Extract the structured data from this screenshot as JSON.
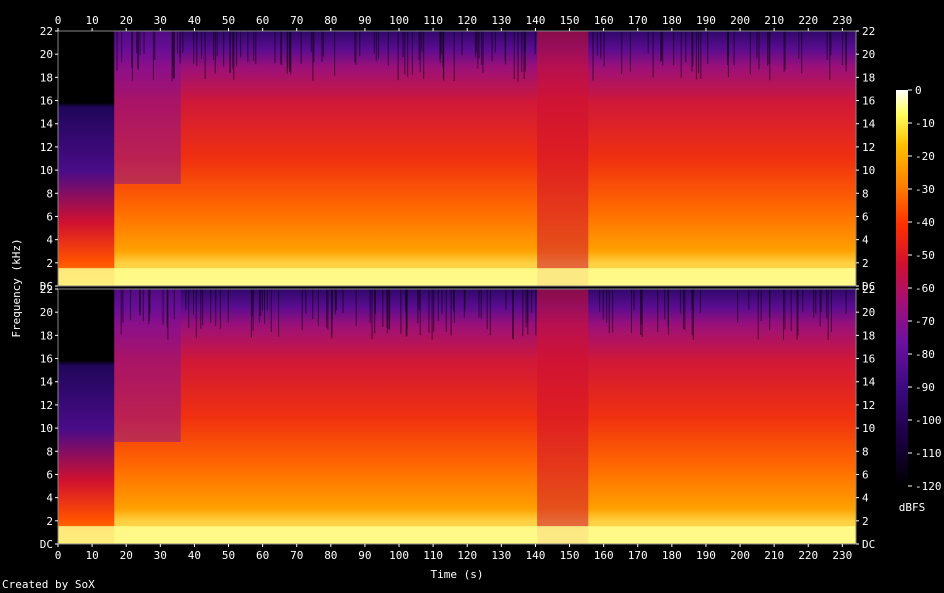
{
  "chart_data": {
    "type": "heatmap",
    "title": "",
    "xlabel": "Time (s)",
    "ylabel": "Frequency (kHz)",
    "xlim": [
      0,
      234
    ],
    "x_ticks": [
      0,
      10,
      20,
      30,
      40,
      50,
      60,
      70,
      80,
      90,
      100,
      110,
      120,
      130,
      140,
      150,
      160,
      170,
      180,
      190,
      200,
      210,
      220,
      230
    ],
    "channels": [
      {
        "name": "",
        "ylim": [
          0,
          22
        ],
        "y_ticks": [
          "DC",
          "2",
          "4",
          "6",
          "8",
          "10",
          "12",
          "14",
          "16",
          "18",
          "20",
          "22"
        ]
      },
      {
        "name": "",
        "ylim": [
          0,
          22
        ],
        "y_ticks": [
          "DC",
          "2",
          "4",
          "6",
          "8",
          "10",
          "12",
          "14",
          "16",
          "18",
          "20",
          "22"
        ]
      }
    ],
    "colorbar": {
      "label": "dBFS",
      "range": [
        -120,
        0
      ],
      "ticks": [
        "0",
        "-10",
        "-20",
        "-30",
        "-40",
        "-50",
        "-60",
        "-70",
        "-80",
        "-90",
        "-100",
        "-110",
        "-120"
      ]
    },
    "colormap": [
      "#000000",
      "#1a0040",
      "#3c0a80",
      "#6a10a0",
      "#a0107a",
      "#d01030",
      "#ff3000",
      "#ff8000",
      "#ffc000",
      "#ffff60",
      "#ffffff"
    ]
  },
  "footer": {
    "credit": "Created by SoX"
  }
}
